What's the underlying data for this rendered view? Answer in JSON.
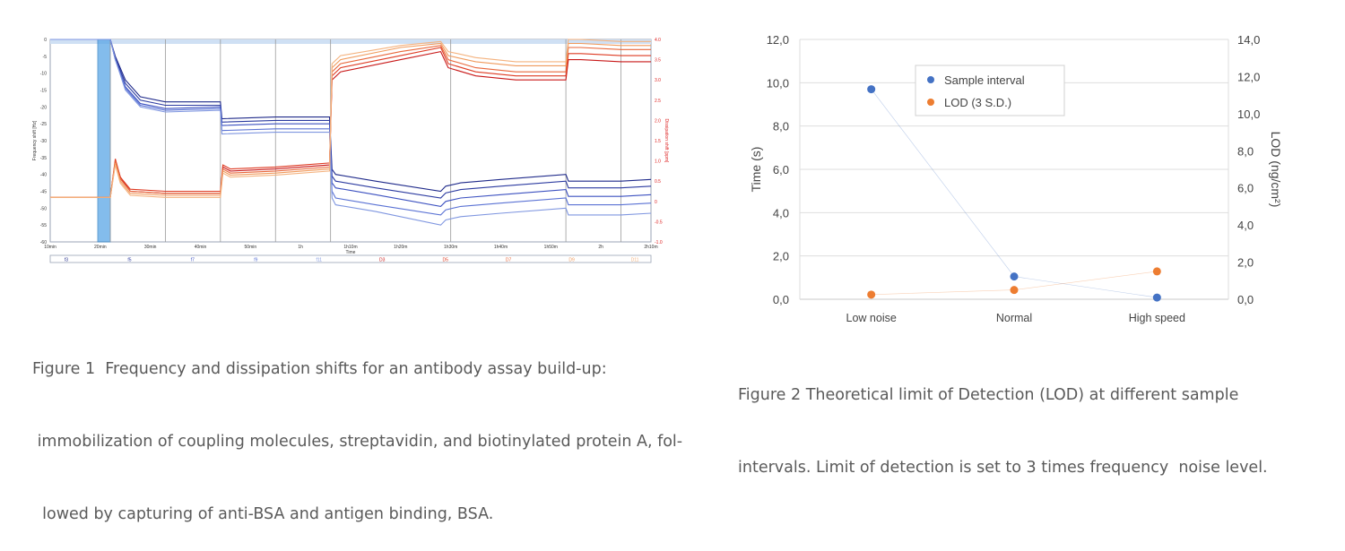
{
  "figure1": {
    "caption_lines": [
      "Figure 1  Frequency and dissipation shifts for an antibody assay build-up:",
      " immobilization of coupling molecules, streptavidin, and biotinylated protein A, fol-",
      "  lowed by capturing of anti-BSA and antigen binding, BSA."
    ],
    "chart_data": {
      "type": "line",
      "xlabel": "Time",
      "ylabel": "Frequency shift [Hz]",
      "y2label": "Dissipation shift [ppm]",
      "ylim": [
        -60,
        0
      ],
      "y2lim": [
        -1.0,
        4.0
      ],
      "y_ticks": [
        "0",
        "-5",
        "-10",
        "-15",
        "-20",
        "-25",
        "-30",
        "-35",
        "-40",
        "-45",
        "-50",
        "-55",
        "-60"
      ],
      "y2_ticks": [
        "4.0",
        "3.5",
        "3.0",
        "2.5",
        "2.0",
        "1.5",
        "1.0",
        "0.5",
        "0",
        "-0.5",
        "-1.0"
      ],
      "x_ticks": [
        "10min",
        "20min",
        "30min",
        "40min",
        "50min",
        "1h",
        "1h10m",
        "1h20m",
        "1h30m",
        "1h40m",
        "1h50m",
        "2h",
        "2h10m"
      ],
      "x_range_minutes": [
        10,
        130
      ],
      "highlight_region_minutes": [
        19.5,
        22.0
      ],
      "event_markers_minutes": [
        22,
        33,
        44,
        55,
        66,
        90,
        113,
        124
      ],
      "sensor_labels": [
        "f3",
        "f5",
        "f7",
        "f9",
        "f11",
        "D3",
        "D5",
        "D7",
        "D9",
        "D11"
      ],
      "frequency_series": {
        "colors": [
          "#1f2a8a",
          "#2b3aa0",
          "#3b50c0",
          "#5a72d4",
          "#7f96e0"
        ],
        "x": [
          10,
          19.5,
          22,
          23,
          25,
          28,
          33,
          44,
          44.3,
          55,
          65.8,
          66.3,
          67,
          75,
          88,
          89,
          92,
          100,
          113,
          113.5,
          124,
          130
        ],
        "values": [
          [
            0,
            0,
            0,
            -5,
            -12,
            -17,
            -18.5,
            -18.5,
            -23.5,
            -23.0,
            -23.0,
            -38.5,
            -40,
            -42,
            -45.0,
            -43.5,
            -42.5,
            -41.5,
            -40.0,
            -42.0,
            -42.0,
            -41.5
          ],
          [
            0,
            0,
            0,
            -5.5,
            -13,
            -18,
            -19.5,
            -19.5,
            -24.5,
            -24.0,
            -24.0,
            -40.5,
            -42,
            -44,
            -47.0,
            -45.5,
            -44.5,
            -43.5,
            -42.0,
            -44.0,
            -44.0,
            -43.5
          ],
          [
            0,
            0,
            0,
            -6,
            -14,
            -19,
            -20.5,
            -20.0,
            -25.5,
            -25.0,
            -25.0,
            -42.5,
            -44,
            -46,
            -49.5,
            -48.0,
            -47.0,
            -46.0,
            -44.5,
            -46.5,
            -46.5,
            -46.0
          ],
          [
            0,
            0,
            0,
            -6,
            -14.5,
            -19.5,
            -21.0,
            -20.5,
            -27.0,
            -26.5,
            -26.5,
            -45.0,
            -47,
            -49,
            -52.0,
            -50.5,
            -49.5,
            -48.5,
            -47.0,
            -49.0,
            -49.0,
            -48.5
          ],
          [
            0,
            0,
            0,
            -6,
            -15,
            -20,
            -21.5,
            -21.0,
            -28.0,
            -27.5,
            -27.5,
            -47.0,
            -49,
            -51,
            -55.0,
            -53.5,
            -52.5,
            -51.5,
            -50.0,
            -52.0,
            -52.0,
            -51.5
          ]
        ]
      },
      "dissipation_series": {
        "colors": [
          "#c81818",
          "#de3a22",
          "#e8663a",
          "#f09a5c",
          "#f4b27e"
        ],
        "x": [
          10,
          19.5,
          22,
          23,
          24,
          26,
          33,
          44,
          44.5,
          46,
          55,
          65.8,
          66.3,
          68,
          80,
          88,
          89.5,
          95,
          103,
          113,
          113.5,
          116,
          124,
          130
        ],
        "values": [
          [
            0.1,
            0.1,
            0.1,
            1.0,
            0.6,
            0.25,
            0.2,
            0.2,
            0.85,
            0.75,
            0.8,
            0.9,
            3.0,
            3.2,
            3.5,
            3.7,
            3.3,
            3.1,
            3.0,
            3.0,
            3.5,
            3.5,
            3.45,
            3.45
          ],
          [
            0.1,
            0.1,
            0.1,
            1.05,
            0.6,
            0.3,
            0.25,
            0.25,
            0.9,
            0.8,
            0.85,
            0.95,
            3.1,
            3.3,
            3.6,
            3.8,
            3.4,
            3.2,
            3.1,
            3.1,
            3.65,
            3.65,
            3.6,
            3.6
          ],
          [
            0.1,
            0.1,
            0.1,
            1.0,
            0.55,
            0.25,
            0.2,
            0.2,
            0.8,
            0.7,
            0.75,
            0.85,
            3.2,
            3.4,
            3.7,
            3.85,
            3.5,
            3.3,
            3.2,
            3.2,
            3.8,
            3.8,
            3.75,
            3.75
          ],
          [
            0.1,
            0.1,
            0.1,
            0.95,
            0.5,
            0.2,
            0.15,
            0.15,
            0.75,
            0.65,
            0.7,
            0.8,
            3.3,
            3.5,
            3.8,
            3.9,
            3.6,
            3.45,
            3.35,
            3.35,
            3.9,
            3.9,
            3.85,
            3.85
          ],
          [
            0.1,
            0.1,
            0.1,
            0.9,
            0.45,
            0.15,
            0.1,
            0.1,
            0.7,
            0.6,
            0.65,
            0.75,
            3.4,
            3.6,
            3.85,
            3.95,
            3.7,
            3.55,
            3.45,
            3.45,
            4.0,
            4.0,
            3.95,
            3.95
          ]
        ]
      }
    }
  },
  "figure2": {
    "caption_lines": [
      "Figure 2 Theoretical limit of Detection (LOD) at different sample",
      "intervals. Limit of detection is set to 3 times frequency  noise level."
    ],
    "chart_data": {
      "type": "scatter",
      "categories": [
        "Low noise",
        "Normal",
        "High speed"
      ],
      "ylabel": "Time (s)",
      "y2label": "LOD (ng/cm²)",
      "ylim": [
        0,
        12
      ],
      "y2lim": [
        0,
        14
      ],
      "y_ticks": [
        "0,0",
        "2,0",
        "4,0",
        "6,0",
        "8,0",
        "10,0",
        "12,0"
      ],
      "y2_ticks": [
        "0,0",
        "2,0",
        "4,0",
        "6,0",
        "8,0",
        "10,0",
        "12,0",
        "14,0"
      ],
      "grid": true,
      "legend_position": "top-left inside",
      "series": [
        {
          "name": "Sample interval",
          "axis": "left",
          "color": "#4472c4",
          "values": [
            9.7,
            1.05,
            0.08
          ]
        },
        {
          "name": "LOD (3 S.D.)",
          "axis": "right",
          "color": "#ed7d31",
          "values": [
            0.25,
            0.5,
            1.5
          ]
        }
      ]
    }
  }
}
